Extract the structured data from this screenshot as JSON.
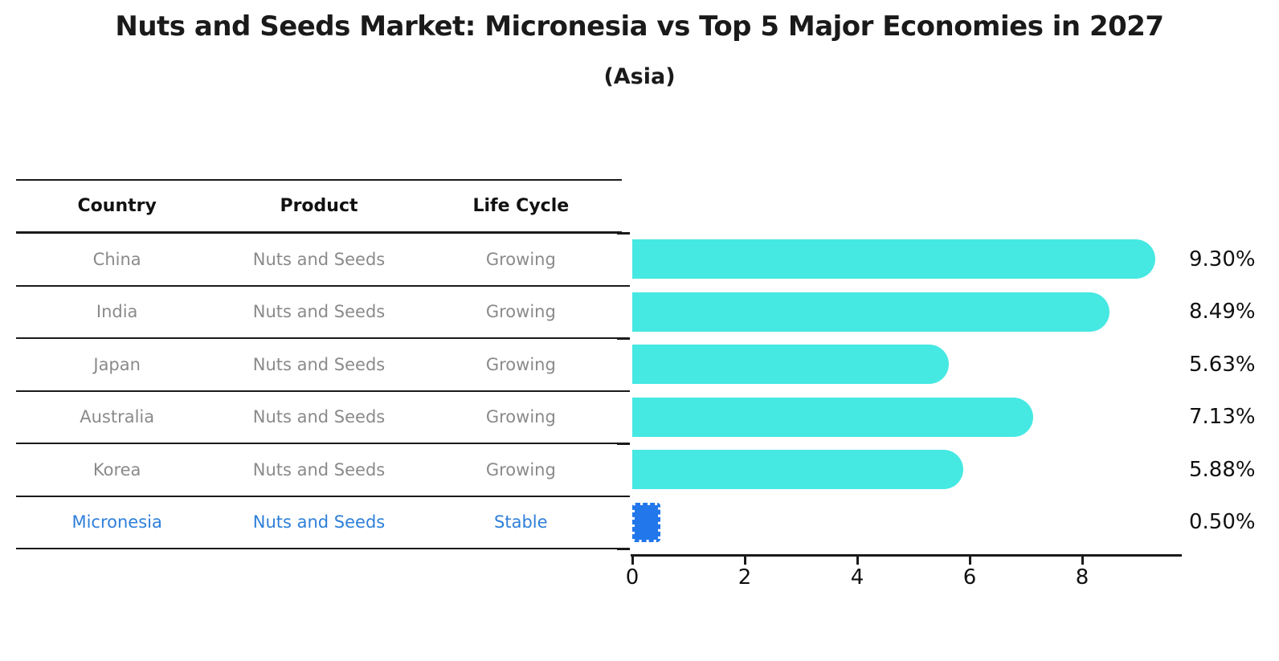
{
  "title": "Nuts and Seeds Market: Micronesia vs Top 5 Major Economies in 2027",
  "subtitle": "(Asia)",
  "table": {
    "headers": [
      "Country",
      "Product",
      "Life Cycle"
    ],
    "rows": [
      {
        "country": "China",
        "product": "Nuts and Seeds",
        "life_cycle": "Growing",
        "highlight": false
      },
      {
        "country": "India",
        "product": "Nuts and Seeds",
        "life_cycle": "Growing",
        "highlight": false
      },
      {
        "country": "Japan",
        "product": "Nuts and Seeds",
        "life_cycle": "Growing",
        "highlight": false
      },
      {
        "country": "Australia",
        "product": "Nuts and Seeds",
        "life_cycle": "Growing",
        "highlight": false
      },
      {
        "country": "Korea",
        "product": "Nuts and Seeds",
        "life_cycle": "Growing",
        "highlight": false
      },
      {
        "country": "Micronesia",
        "product": "Nuts and Seeds",
        "life_cycle": "Stable",
        "highlight": true
      }
    ]
  },
  "chart_data": {
    "type": "bar",
    "orientation": "horizontal",
    "title": "Nuts and Seeds Market: Micronesia vs Top 5 Major Economies in 2027",
    "subtitle": "(Asia)",
    "categories": [
      "China",
      "India",
      "Japan",
      "Australia",
      "Korea",
      "Micronesia"
    ],
    "values": [
      9.3,
      8.49,
      5.63,
      7.13,
      5.88,
      0.5
    ],
    "value_labels": [
      "9.30%",
      "8.49%",
      "5.63%",
      "7.13%",
      "5.88%",
      "0.50%"
    ],
    "x_ticks": [
      0,
      2,
      4,
      6,
      8
    ],
    "xlim": [
      0,
      9.77
    ],
    "grid": false,
    "legend": null,
    "highlight_index": 5,
    "bar_color": "#46e8e2",
    "highlight_bar_color": "#2277eb",
    "highlight_text_color": "#2e7fd9"
  },
  "colors": {
    "background": "#ffffff",
    "text": "#111111",
    "muted_text": "#8a8a8a",
    "rule": "#1a1a1a"
  }
}
